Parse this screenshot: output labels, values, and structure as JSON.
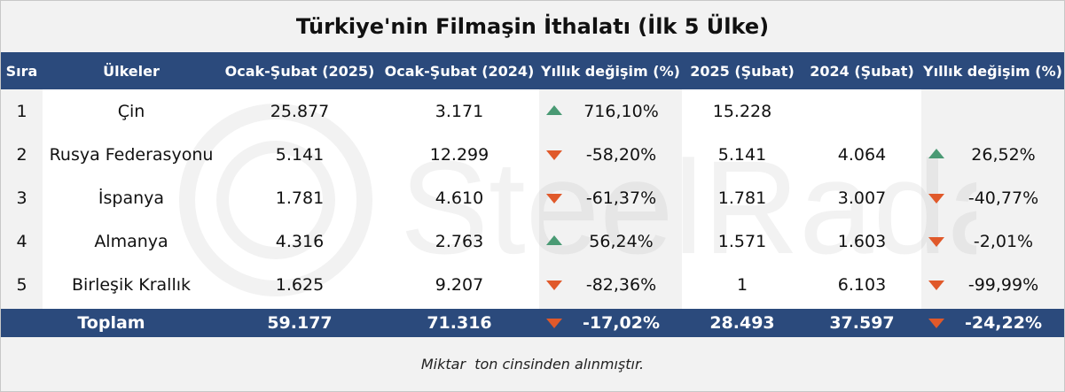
{
  "title": "Türkiye'nin Filmaşin İthalatı (İlk 5 Ülke)",
  "footnote": "Miktar  ton cinsinden alınmıştır.",
  "watermark": "SteelRadar",
  "colors": {
    "header_bg": "#2b4a7c",
    "up": "#4a9a74",
    "down": "#e0592a"
  },
  "chart_data": {
    "type": "table",
    "columns": [
      "Sıra",
      "Ülkeler",
      "Ocak-Şubat (2025)",
      "Ocak-Şubat (2024)",
      "Yıllık değişim (%)",
      "2025 (Şubat)",
      "2024 (Şubat)",
      "Yıllık değişim (%)"
    ],
    "rows": [
      {
        "rank": "1",
        "country": "Çin",
        "ocak_subat_2025": "25.877",
        "ocak_subat_2024": "3.171",
        "change_ytd": "716,10%",
        "change_ytd_dir": "up",
        "subat_2025": "15.228",
        "subat_2024": "",
        "change_feb": "",
        "change_feb_dir": ""
      },
      {
        "rank": "2",
        "country": "Rusya Federasyonu",
        "ocak_subat_2025": "5.141",
        "ocak_subat_2024": "12.299",
        "change_ytd": "-58,20%",
        "change_ytd_dir": "down",
        "subat_2025": "5.141",
        "subat_2024": "4.064",
        "change_feb": "26,52%",
        "change_feb_dir": "up"
      },
      {
        "rank": "3",
        "country": "İspanya",
        "ocak_subat_2025": "1.781",
        "ocak_subat_2024": "4.610",
        "change_ytd": "-61,37%",
        "change_ytd_dir": "down",
        "subat_2025": "1.781",
        "subat_2024": "3.007",
        "change_feb": "-40,77%",
        "change_feb_dir": "down"
      },
      {
        "rank": "4",
        "country": "Almanya",
        "ocak_subat_2025": "4.316",
        "ocak_subat_2024": "2.763",
        "change_ytd": "56,24%",
        "change_ytd_dir": "up",
        "subat_2025": "1.571",
        "subat_2024": "1.603",
        "change_feb": "-2,01%",
        "change_feb_dir": "down"
      },
      {
        "rank": "5",
        "country": "Birleşik Krallık",
        "ocak_subat_2025": "1.625",
        "ocak_subat_2024": "9.207",
        "change_ytd": "-82,36%",
        "change_ytd_dir": "down",
        "subat_2025": "1",
        "subat_2024": "6.103",
        "change_feb": "-99,99%",
        "change_feb_dir": "down"
      }
    ],
    "total": {
      "label": "Toplam",
      "ocak_subat_2025": "59.177",
      "ocak_subat_2024": "71.316",
      "change_ytd": "-17,02%",
      "change_ytd_dir": "down",
      "subat_2025": "28.493",
      "subat_2024": "37.597",
      "change_feb": "-24,22%",
      "change_feb_dir": "down"
    }
  }
}
